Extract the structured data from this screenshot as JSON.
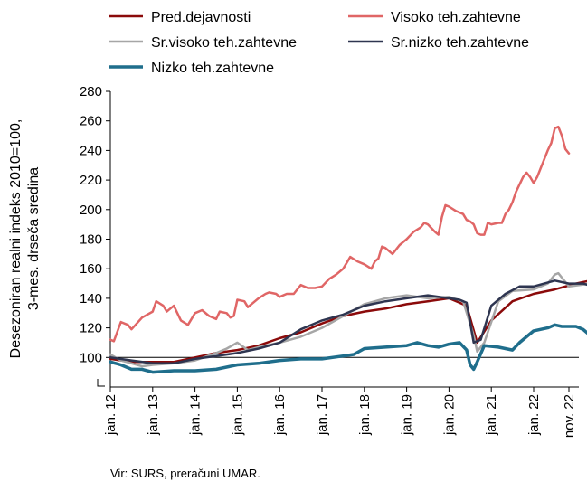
{
  "chart_data": {
    "type": "line",
    "ylabel": [
      "Desezoniran realni indeks 2010=100,",
      "3-mes. drseča sredina"
    ],
    "ylim": [
      80,
      280
    ],
    "yticks": [
      100,
      120,
      140,
      160,
      180,
      200,
      220,
      240,
      260,
      280
    ],
    "xticks": [
      "jan. 12",
      "jan. 13",
      "jan. 14",
      "jan. 15",
      "jan. 16",
      "jan. 17",
      "jan. 18",
      "jan. 19",
      "jan. 20",
      "jan. 21",
      "jan. 22",
      "nov. 22"
    ],
    "x_start": "2012-01",
    "x_end": "2022-11",
    "grid": false,
    "legend_position": "top",
    "baseline": 100,
    "series": [
      {
        "name": "Pred.dejavnosti",
        "color": "#8B0A0A",
        "points": [
          [
            0,
            99
          ],
          [
            6,
            97
          ],
          [
            12,
            97
          ],
          [
            18,
            97
          ],
          [
            24,
            100
          ],
          [
            30,
            103
          ],
          [
            36,
            105
          ],
          [
            42,
            108
          ],
          [
            48,
            113
          ],
          [
            54,
            117
          ],
          [
            60,
            123
          ],
          [
            66,
            128
          ],
          [
            72,
            131
          ],
          [
            78,
            133
          ],
          [
            84,
            136
          ],
          [
            90,
            138
          ],
          [
            96,
            140
          ],
          [
            101,
            135
          ],
          [
            104,
            110
          ],
          [
            108,
            125
          ],
          [
            114,
            138
          ],
          [
            120,
            143
          ],
          [
            126,
            146
          ],
          [
            132,
            150
          ],
          [
            136,
            152
          ],
          [
            141,
            153
          ]
        ]
      },
      {
        "name": "Visoko teh.zahtevne",
        "color": "#E06666",
        "points": [
          [
            0,
            112
          ],
          [
            1,
            111
          ],
          [
            3,
            124
          ],
          [
            5,
            122
          ],
          [
            6,
            119
          ],
          [
            9,
            127
          ],
          [
            12,
            131
          ],
          [
            13,
            138
          ],
          [
            15,
            135
          ],
          [
            16,
            131
          ],
          [
            18,
            135
          ],
          [
            19,
            130
          ],
          [
            20,
            125
          ],
          [
            22,
            122
          ],
          [
            24,
            130
          ],
          [
            26,
            132
          ],
          [
            28,
            128
          ],
          [
            30,
            126
          ],
          [
            31,
            131
          ],
          [
            33,
            130
          ],
          [
            34,
            127
          ],
          [
            35,
            128
          ],
          [
            36,
            139
          ],
          [
            38,
            138
          ],
          [
            39,
            134
          ],
          [
            42,
            140
          ],
          [
            44,
            143
          ],
          [
            45,
            144
          ],
          [
            47,
            143
          ],
          [
            48,
            141
          ],
          [
            50,
            143
          ],
          [
            52,
            143
          ],
          [
            54,
            149
          ],
          [
            56,
            147
          ],
          [
            58,
            147
          ],
          [
            60,
            148
          ],
          [
            62,
            153
          ],
          [
            64,
            156
          ],
          [
            66,
            160
          ],
          [
            67,
            164
          ],
          [
            68,
            168
          ],
          [
            70,
            165
          ],
          [
            72,
            163
          ],
          [
            74,
            160
          ],
          [
            75,
            165
          ],
          [
            76,
            167
          ],
          [
            77,
            175
          ],
          [
            78,
            174
          ],
          [
            80,
            170
          ],
          [
            82,
            176
          ],
          [
            84,
            180
          ],
          [
            86,
            185
          ],
          [
            88,
            188
          ],
          [
            89,
            191
          ],
          [
            90,
            190
          ],
          [
            92,
            185
          ],
          [
            93,
            183
          ],
          [
            94,
            195
          ],
          [
            95,
            203
          ],
          [
            96,
            202
          ],
          [
            98,
            199
          ],
          [
            100,
            197
          ],
          [
            101,
            193
          ],
          [
            102,
            192
          ],
          [
            103,
            190
          ],
          [
            104,
            184
          ],
          [
            105,
            183
          ],
          [
            106,
            183
          ],
          [
            107,
            191
          ],
          [
            108,
            190
          ],
          [
            110,
            191
          ],
          [
            111,
            191
          ],
          [
            112,
            197
          ],
          [
            113,
            200
          ],
          [
            114,
            205
          ],
          [
            115,
            212
          ],
          [
            117,
            222
          ],
          [
            118,
            225
          ],
          [
            119,
            222
          ],
          [
            120,
            218
          ],
          [
            121,
            222
          ],
          [
            122,
            228
          ],
          [
            124,
            240
          ],
          [
            125,
            245
          ],
          [
            126,
            255
          ],
          [
            127,
            256
          ],
          [
            128,
            250
          ],
          [
            129,
            241
          ],
          [
            130,
            238
          ]
        ]
      },
      {
        "name": "Sr.visoko teh.zahtevne",
        "color": "#A6A6A6",
        "points": [
          [
            0,
            102
          ],
          [
            3,
            98
          ],
          [
            6,
            96
          ],
          [
            9,
            94
          ],
          [
            12,
            95
          ],
          [
            18,
            96
          ],
          [
            24,
            98
          ],
          [
            30,
            103
          ],
          [
            33,
            106
          ],
          [
            36,
            110
          ],
          [
            39,
            105
          ],
          [
            42,
            107
          ],
          [
            48,
            110
          ],
          [
            54,
            114
          ],
          [
            60,
            120
          ],
          [
            66,
            128
          ],
          [
            72,
            136
          ],
          [
            78,
            140
          ],
          [
            84,
            142
          ],
          [
            90,
            140
          ],
          [
            96,
            141
          ],
          [
            100,
            138
          ],
          [
            103,
            115
          ],
          [
            104,
            104
          ],
          [
            106,
            110
          ],
          [
            110,
            138
          ],
          [
            114,
            145
          ],
          [
            120,
            146
          ],
          [
            124,
            150
          ],
          [
            126,
            156
          ],
          [
            127,
            157
          ],
          [
            130,
            148
          ],
          [
            136,
            150
          ],
          [
            141,
            148
          ]
        ]
      },
      {
        "name": "Sr.nizko teh.zahtevne",
        "color": "#2E3550",
        "points": [
          [
            0,
            100
          ],
          [
            6,
            98
          ],
          [
            12,
            96
          ],
          [
            18,
            96
          ],
          [
            24,
            99
          ],
          [
            30,
            101
          ],
          [
            36,
            103
          ],
          [
            42,
            106
          ],
          [
            48,
            110
          ],
          [
            54,
            119
          ],
          [
            60,
            125
          ],
          [
            66,
            129
          ],
          [
            72,
            135
          ],
          [
            78,
            138
          ],
          [
            84,
            140
          ],
          [
            90,
            142
          ],
          [
            96,
            140
          ],
          [
            99,
            139
          ],
          [
            101,
            137
          ],
          [
            103,
            110
          ],
          [
            105,
            112
          ],
          [
            108,
            135
          ],
          [
            112,
            143
          ],
          [
            116,
            148
          ],
          [
            120,
            148
          ],
          [
            126,
            152
          ],
          [
            130,
            150
          ],
          [
            134,
            150
          ],
          [
            137,
            148
          ],
          [
            141,
            146
          ]
        ]
      },
      {
        "name": "Nizko teh.zahtevne",
        "color": "#1F6E8C",
        "points": [
          [
            0,
            97
          ],
          [
            3,
            95
          ],
          [
            6,
            92
          ],
          [
            9,
            92
          ],
          [
            12,
            90
          ],
          [
            18,
            91
          ],
          [
            24,
            91
          ],
          [
            30,
            92
          ],
          [
            36,
            95
          ],
          [
            42,
            96
          ],
          [
            48,
            98
          ],
          [
            54,
            99
          ],
          [
            60,
            99
          ],
          [
            66,
            101
          ],
          [
            69,
            102
          ],
          [
            72,
            106
          ],
          [
            78,
            107
          ],
          [
            84,
            108
          ],
          [
            87,
            110
          ],
          [
            90,
            108
          ],
          [
            93,
            107
          ],
          [
            96,
            109
          ],
          [
            99,
            110
          ],
          [
            101,
            105
          ],
          [
            102,
            95
          ],
          [
            103,
            92
          ],
          [
            104,
            97
          ],
          [
            106,
            108
          ],
          [
            110,
            107
          ],
          [
            114,
            105
          ],
          [
            116,
            110
          ],
          [
            120,
            118
          ],
          [
            124,
            120
          ],
          [
            126,
            122
          ],
          [
            128,
            121
          ],
          [
            132,
            121
          ],
          [
            134,
            119
          ],
          [
            136,
            115
          ],
          [
            138,
            114
          ],
          [
            141,
            115
          ]
        ]
      }
    ]
  },
  "source_note": "Vir: SURS, preračuni UMAR."
}
